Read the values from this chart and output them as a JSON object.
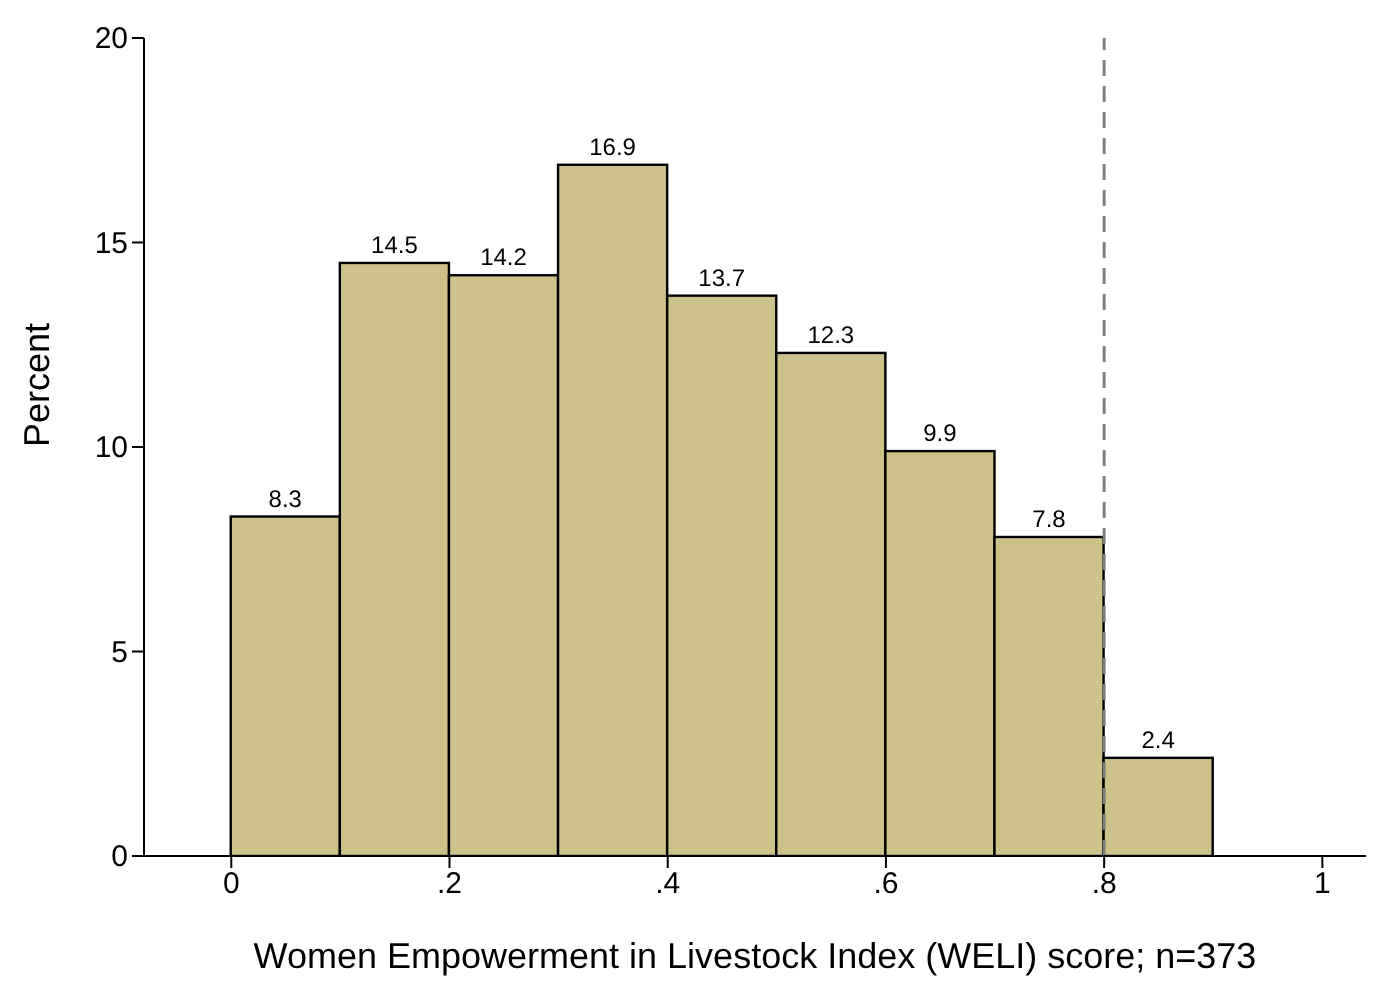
{
  "chart_data": {
    "type": "histogram",
    "xlabel": "Women Empowerment in Livestock Index  (WELI) score;  n=373",
    "ylabel": "Percent",
    "bins": [
      0,
      0.1,
      0.2,
      0.3,
      0.4,
      0.5,
      0.6,
      0.7,
      0.8,
      0.9
    ],
    "values": [
      8.3,
      14.5,
      14.2,
      16.9,
      13.7,
      12.3,
      9.9,
      7.8,
      2.4
    ],
    "color": "#cdc38a",
    "data_labels": true,
    "xlim": [
      -0.08,
      1.04
    ],
    "xticks": [
      {
        "value": 0,
        "label": "0"
      },
      {
        "value": 0.2,
        "label": ".2"
      },
      {
        "value": 0.4,
        "label": ".4"
      },
      {
        "value": 0.6,
        "label": ".6"
      },
      {
        "value": 0.8,
        "label": ".8"
      },
      {
        "value": 1,
        "label": "1"
      }
    ],
    "ylim": [
      0,
      20
    ],
    "yticks": [
      0,
      5,
      10,
      15,
      20
    ],
    "ref_lines": [
      {
        "axis": "x",
        "value": 0.8,
        "color": "#808080",
        "line_style": "dashed"
      }
    ],
    "grid": false,
    "legend": false
  }
}
